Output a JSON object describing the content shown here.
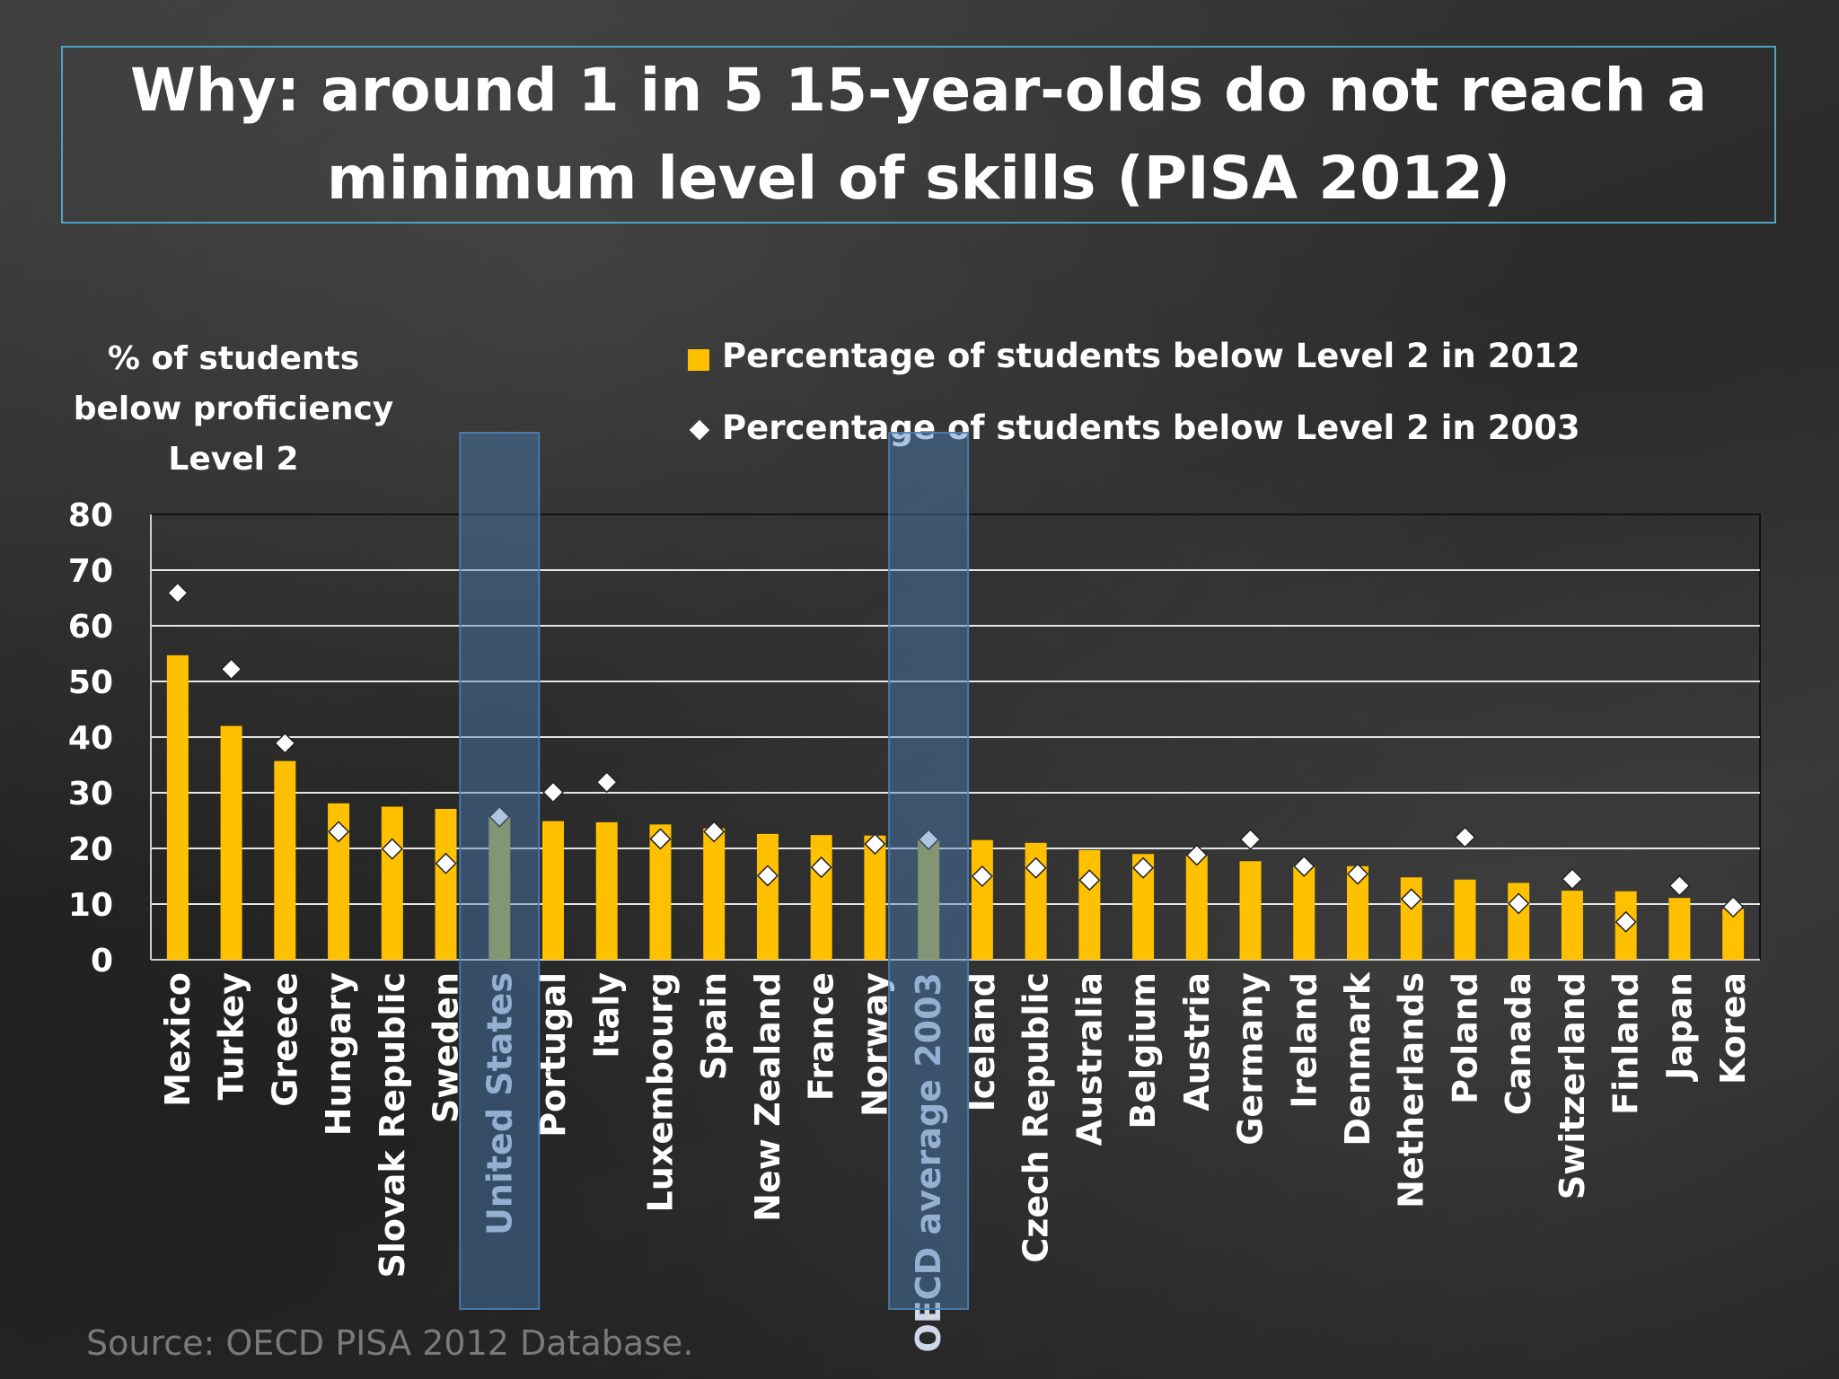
{
  "title": "Why: around 1 in 5 15-year-olds do not reach a\nminimum level of skills (PISA 2012)",
  "source": "Source: OECD PISA 2012 Database.",
  "colors": {
    "bar": "#ffc000",
    "highlight_bar": "#b5a83c",
    "highlight_box": "#4a7fb5",
    "title_border": "#4ea3c8"
  },
  "chart_data": {
    "type": "bar",
    "ylabel": "% of students below proficiency Level 2",
    "ylim": [
      0,
      80
    ],
    "yticks": [
      "0",
      "10",
      "20",
      "30",
      "40",
      "50",
      "60",
      "70",
      "80"
    ],
    "grid": true,
    "legend_position": "top-right",
    "highlighted": [
      "United States",
      "OECD average 2003"
    ],
    "categories": [
      "Mexico",
      "Turkey",
      "Greece",
      "Hungary",
      "Slovak Republic",
      "Sweden",
      "United States",
      "Portugal",
      "Italy",
      "Luxembourg",
      "Spain",
      "New Zealand",
      "France",
      "Norway",
      "OECD average 2003",
      "Iceland",
      "Czech Republic",
      "Australia",
      "Belgium",
      "Austria",
      "Germany",
      "Ireland",
      "Denmark",
      "Netherlands",
      "Poland",
      "Canada",
      "Switzerland",
      "Finland",
      "Japan",
      "Korea"
    ],
    "series": [
      {
        "name": "Percentage of students below Level 2 in 2012",
        "type": "bar",
        "values": [
          54.7,
          42.0,
          35.7,
          28.1,
          27.5,
          27.1,
          25.8,
          24.9,
          24.7,
          24.3,
          23.6,
          22.6,
          22.4,
          22.3,
          21.8,
          21.5,
          21.0,
          19.7,
          19.0,
          18.7,
          17.7,
          16.9,
          16.8,
          14.8,
          14.4,
          13.8,
          12.4,
          12.3,
          11.1,
          9.1
        ]
      },
      {
        "name": "Percentage of students below Level 2 in 2003",
        "type": "scatter",
        "values": [
          65.9,
          52.2,
          38.9,
          23.0,
          19.9,
          17.3,
          25.7,
          30.1,
          31.9,
          21.7,
          23.0,
          15.1,
          16.6,
          20.8,
          21.6,
          15.0,
          16.5,
          14.3,
          16.5,
          18.8,
          21.6,
          16.8,
          15.4,
          10.9,
          22.0,
          10.1,
          14.5,
          6.8,
          13.3,
          9.5
        ]
      }
    ]
  }
}
